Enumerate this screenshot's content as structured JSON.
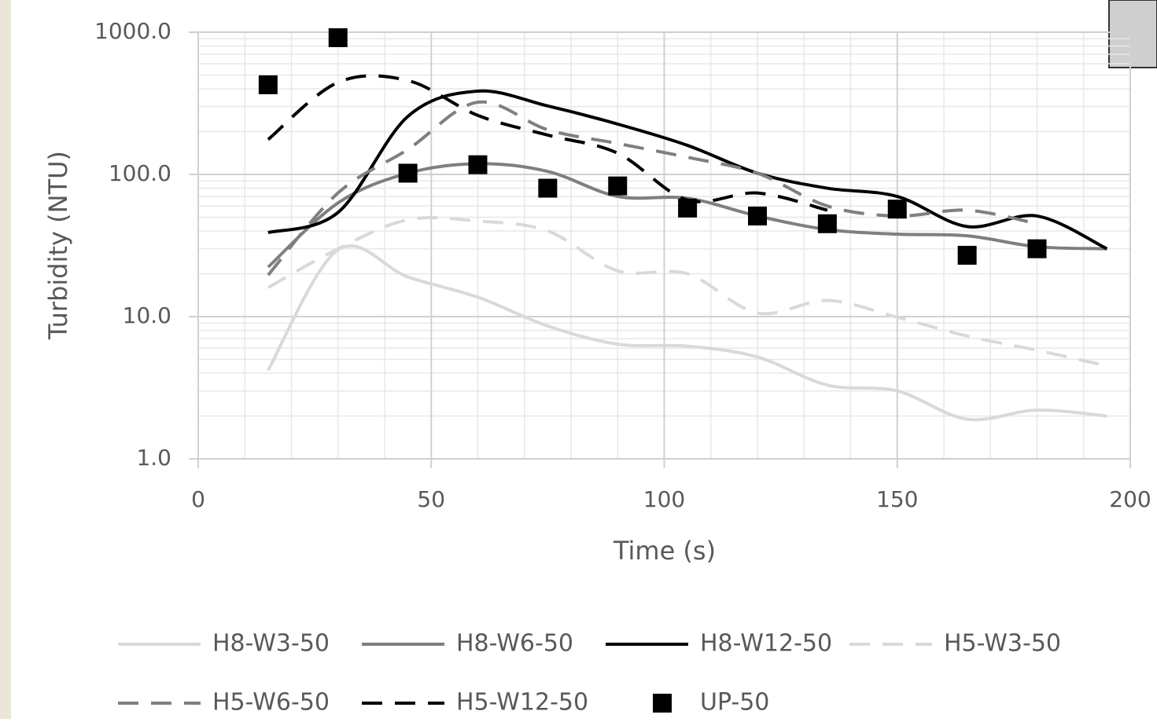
{
  "chart_data": {
    "type": "line",
    "x_label": "Time (s)",
    "y_label": "Turbidity (NTU)",
    "x": [
      15,
      30,
      45,
      60,
      75,
      90,
      105,
      120,
      135,
      150,
      165,
      180,
      195
    ],
    "xlim": [
      0,
      200
    ],
    "xticks": [
      0,
      50,
      100,
      150,
      200
    ],
    "ylim": [
      1,
      1000
    ],
    "y_scale": "log",
    "yticks": [
      {
        "value": 1,
        "label": "1.0"
      },
      {
        "value": 10,
        "label": "10.0"
      },
      {
        "value": 100,
        "label": "100.0"
      },
      {
        "value": 1000,
        "label": "1000.0"
      }
    ],
    "grid": true,
    "minor_grid": true,
    "legend": "bottom",
    "series": [
      {
        "name": "H8-W3-50",
        "color": "#d9d9d9",
        "style": "solid",
        "values": [
          4.2,
          29.5,
          19,
          13.7,
          8.6,
          6.4,
          6.2,
          5.2,
          3.3,
          3.0,
          1.9,
          2.2,
          2.0
        ]
      },
      {
        "name": "H8-W6-50",
        "color": "#7f7f7f",
        "style": "solid",
        "values": [
          22.3,
          63,
          102,
          119,
          105,
          70,
          68,
          51,
          41,
          38,
          37,
          31,
          30
        ]
      },
      {
        "name": "H8-W12-50",
        "color": "#000000",
        "style": "solid",
        "values": [
          39,
          54,
          256,
          385,
          303,
          226,
          160,
          102,
          80,
          70,
          43,
          51,
          30
        ]
      },
      {
        "name": "H5-W3-50",
        "color": "#d9d9d9",
        "style": "dashed",
        "values": [
          16,
          30,
          48,
          47,
          40,
          21,
          20,
          10.6,
          13,
          9.9,
          7.3,
          5.8,
          4.5
        ]
      },
      {
        "name": "H5-W6-50",
        "color": "#7f7f7f",
        "style": "dashed",
        "values": [
          19.6,
          74,
          150,
          322,
          206,
          165,
          132,
          102,
          60,
          51,
          56,
          45,
          null
        ]
      },
      {
        "name": "H5-W12-50",
        "color": "#000000",
        "style": "dashed",
        "values": [
          176,
          444,
          457,
          260,
          189,
          141,
          66,
          74,
          56,
          null,
          null,
          null,
          null
        ]
      },
      {
        "name": "UP-50",
        "color": "#000000",
        "style": "marker",
        "values": [
          427,
          915,
          102,
          117,
          80,
          83,
          58,
          51,
          45,
          57,
          27,
          30,
          null
        ]
      }
    ]
  }
}
